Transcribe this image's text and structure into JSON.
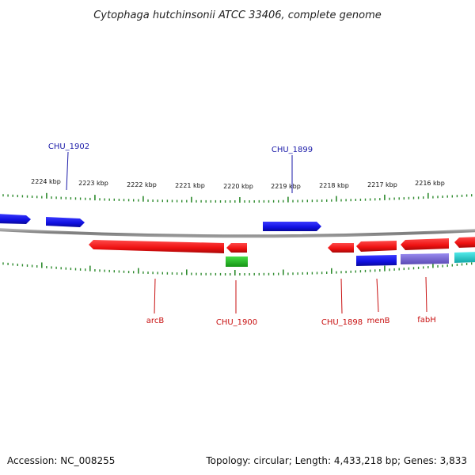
{
  "title": "Cytophaga hutchinsonii ATCC 33406, complete genome",
  "footer": {
    "accession": "Accession: NC_008255",
    "topology": "Topology: circular; Length: 4,433,218 bp; Genes: 3,833"
  },
  "colors": {
    "background": "#ffffff",
    "backbone": "#8c8c8c",
    "ticks": "#2e8b2e",
    "forward_gene": "#1010e0",
    "reverse_gene": "#ee1111",
    "rna_gene": "#22b822",
    "purple_gene": "#7a6ad4",
    "cyan_gene": "#22d0d0",
    "top_label": "#1a1aa8",
    "bottom_label": "#c81010"
  },
  "kbp_labels": [
    "2224 kbp",
    "2223 kbp",
    "2222 kbp",
    "2221 kbp",
    "2220 kbp",
    "2219 kbp",
    "2218 kbp",
    "2217 kbp",
    "2216 kbp"
  ],
  "top_labels": [
    "CHU_1902",
    "CHU_1899"
  ],
  "bottom_labels": [
    "arcB",
    "CHU_1900",
    "CHU_1898",
    "menB",
    "fabH"
  ]
}
